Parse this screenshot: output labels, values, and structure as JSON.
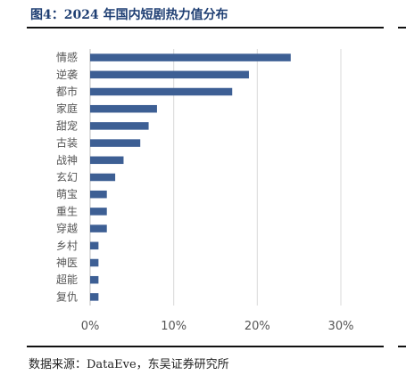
{
  "figure": {
    "title": "图4：2024 年国内短剧热力值分布",
    "source": "数据来源：DataEve，东吴证券研究所"
  },
  "chart_data": {
    "type": "bar",
    "orientation": "horizontal",
    "title": "",
    "xlabel": "",
    "ylabel": "",
    "categories": [
      "情感",
      "逆袭",
      "都市",
      "家庭",
      "甜宠",
      "古装",
      "战神",
      "玄幻",
      "萌宝",
      "重生",
      "穿越",
      "乡村",
      "神医",
      "超能",
      "复仇"
    ],
    "values": [
      24,
      19,
      17,
      8,
      7,
      6,
      4,
      3,
      2,
      2,
      2,
      1,
      1,
      1,
      1
    ],
    "xlim": [
      0,
      30
    ],
    "xticks": [
      "0%",
      "10%",
      "20%",
      "30%"
    ],
    "xtick_values": [
      0,
      10,
      20,
      30
    ],
    "grid": "vertical",
    "bar_color": "#3d5f94",
    "legend": "none"
  }
}
